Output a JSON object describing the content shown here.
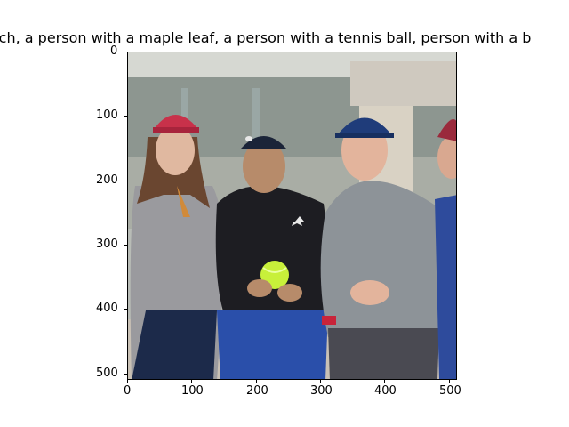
{
  "figure": {
    "title": "otch,  a person with a maple leaf, a person with a tennis ball, person with a b",
    "x_ticks": [
      "0",
      "100",
      "200",
      "300",
      "400",
      "500"
    ],
    "y_ticks": [
      "0",
      "100",
      "200",
      "300",
      "400",
      "500"
    ]
  },
  "image": {
    "description_colors": {
      "sky": "#c9ccc7",
      "building": "#7f8882",
      "left_cap": "#c8314a",
      "right_cap": "#1f3c7a",
      "tennis_ball": "#c8f03a"
    }
  }
}
